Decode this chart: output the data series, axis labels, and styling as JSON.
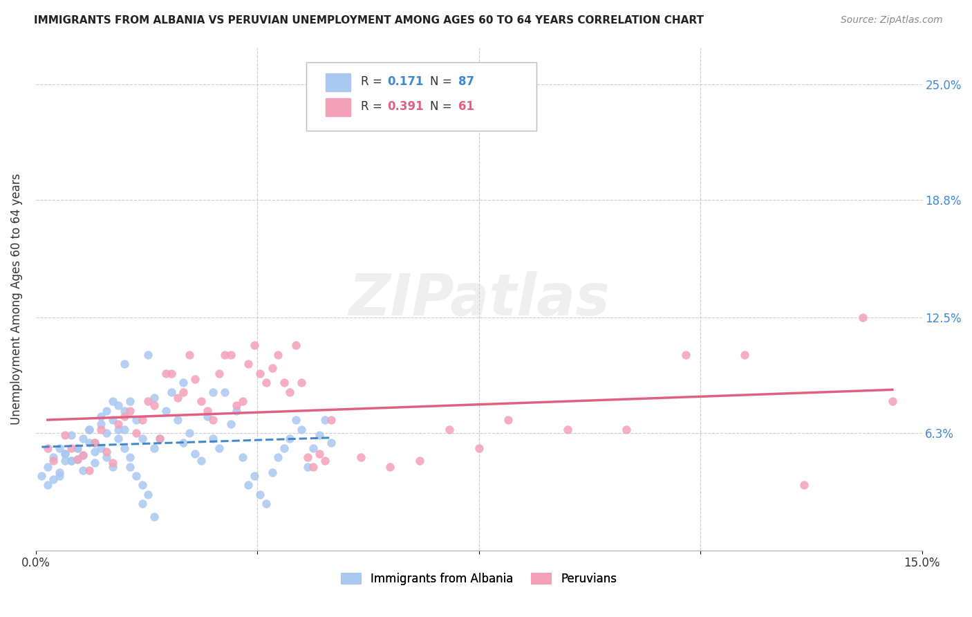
{
  "title": "IMMIGRANTS FROM ALBANIA VS PERUVIAN UNEMPLOYMENT AMONG AGES 60 TO 64 YEARS CORRELATION CHART",
  "source": "Source: ZipAtlas.com",
  "ylabel": "Unemployment Among Ages 60 to 64 years",
  "ytick_labels": [
    "6.3%",
    "12.5%",
    "18.8%",
    "25.0%"
  ],
  "ytick_values": [
    6.3,
    12.5,
    18.8,
    25.0
  ],
  "xlim": [
    0.0,
    15.0
  ],
  "ylim": [
    0.0,
    27.0
  ],
  "albania_color": "#a8c8f0",
  "peru_color": "#f4a0b8",
  "albania_R": 0.171,
  "albania_N": 87,
  "peru_R": 0.391,
  "peru_N": 61,
  "albania_line_color": "#4488cc",
  "peru_line_color": "#e06080",
  "background_color": "#ffffff",
  "grid_color": "#cccccc",
  "albania_scatter_x": [
    0.1,
    0.2,
    0.2,
    0.3,
    0.3,
    0.4,
    0.4,
    0.5,
    0.5,
    0.6,
    0.6,
    0.7,
    0.7,
    0.8,
    0.8,
    0.9,
    0.9,
    1.0,
    1.0,
    1.1,
    1.1,
    1.2,
    1.2,
    1.3,
    1.3,
    1.4,
    1.4,
    1.5,
    1.5,
    1.6,
    1.6,
    1.7,
    1.8,
    1.9,
    2.0,
    2.1,
    2.2,
    2.3,
    2.4,
    2.5,
    2.6,
    2.7,
    2.8,
    2.9,
    3.0,
    3.1,
    3.2,
    3.3,
    3.4,
    3.5,
    3.6,
    3.7,
    3.8,
    3.9,
    4.0,
    4.1,
    4.2,
    4.3,
    4.4,
    4.5,
    4.6,
    4.7,
    4.8,
    4.9,
    5.0,
    0.4,
    0.5,
    0.6,
    0.7,
    0.8,
    0.9,
    1.0,
    1.1,
    1.2,
    1.3,
    1.4,
    1.5,
    1.6,
    1.7,
    1.8,
    1.9,
    2.0,
    2.5,
    3.0,
    1.5,
    2.0,
    1.8
  ],
  "albania_scatter_y": [
    4.0,
    3.5,
    4.5,
    3.8,
    5.0,
    4.2,
    5.5,
    4.8,
    5.2,
    4.8,
    6.2,
    5.5,
    4.9,
    5.1,
    4.3,
    5.8,
    6.5,
    5.3,
    4.7,
    6.8,
    7.2,
    7.5,
    6.3,
    7.0,
    8.0,
    7.8,
    6.0,
    6.5,
    5.5,
    5.0,
    4.5,
    4.0,
    3.5,
    3.0,
    5.5,
    6.0,
    7.5,
    8.5,
    7.0,
    5.8,
    6.3,
    5.2,
    4.8,
    7.2,
    6.0,
    5.5,
    8.5,
    6.8,
    7.5,
    5.0,
    3.5,
    4.0,
    3.0,
    2.5,
    4.2,
    5.0,
    5.5,
    6.0,
    7.0,
    6.5,
    4.5,
    5.5,
    6.2,
    7.0,
    5.8,
    4.0,
    5.2,
    4.8,
    5.5,
    6.0,
    6.5,
    5.8,
    5.5,
    5.0,
    4.5,
    6.5,
    7.5,
    8.0,
    7.0,
    6.0,
    10.5,
    8.2,
    9.0,
    8.5,
    10.0,
    1.8,
    2.5
  ],
  "peru_scatter_x": [
    0.2,
    0.3,
    0.5,
    0.6,
    0.7,
    0.8,
    0.9,
    1.0,
    1.1,
    1.2,
    1.3,
    1.4,
    1.5,
    1.6,
    1.7,
    1.8,
    1.9,
    2.0,
    2.1,
    2.2,
    2.3,
    2.4,
    2.5,
    2.6,
    2.7,
    2.8,
    2.9,
    3.0,
    3.1,
    3.2,
    3.3,
    3.4,
    3.5,
    3.6,
    3.7,
    3.8,
    3.9,
    4.0,
    4.1,
    4.2,
    4.3,
    4.4,
    4.5,
    4.6,
    4.7,
    4.8,
    4.9,
    5.0,
    5.5,
    6.0,
    6.5,
    7.0,
    7.5,
    8.0,
    9.0,
    10.0,
    11.0,
    12.0,
    13.0,
    14.0,
    14.5
  ],
  "peru_scatter_y": [
    5.5,
    4.8,
    6.2,
    5.5,
    4.9,
    5.1,
    4.3,
    5.8,
    6.5,
    5.3,
    4.7,
    6.8,
    7.2,
    7.5,
    6.3,
    7.0,
    8.0,
    7.8,
    6.0,
    9.5,
    9.5,
    8.2,
    8.5,
    10.5,
    9.2,
    8.0,
    7.5,
    7.0,
    9.5,
    10.5,
    10.5,
    7.8,
    8.0,
    10.0,
    11.0,
    9.5,
    9.0,
    9.8,
    10.5,
    9.0,
    8.5,
    11.0,
    9.0,
    5.0,
    4.5,
    5.2,
    4.8,
    7.0,
    5.0,
    4.5,
    4.8,
    6.5,
    5.5,
    7.0,
    6.5,
    6.5,
    10.5,
    10.5,
    3.5,
    12.5,
    8.0
  ],
  "legend_albania_label": "Immigrants from Albania",
  "legend_peru_label": "Peruvians"
}
